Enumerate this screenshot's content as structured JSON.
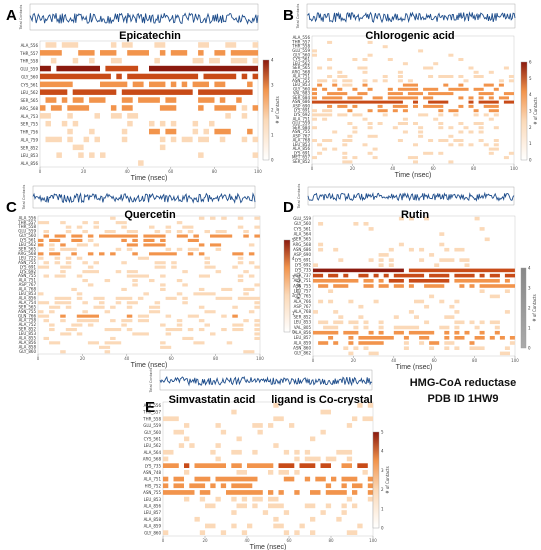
{
  "figure": {
    "info_line1": "HMG-CoA reductase",
    "info_line2": "PDB ID  1HW9"
  },
  "chart_data": [
    {
      "type": "heatmap",
      "letter": "A",
      "title": "Epicatechin",
      "xlabel": "Time (nsec)",
      "top_label": "Total Contacts",
      "cbar_label": "# of Contacts",
      "x_ticks": [
        "0",
        "20",
        "40",
        "60",
        "80",
        "100"
      ],
      "xlim": [
        0,
        100
      ],
      "residues": [
        "ALA_556",
        "THR_557",
        "THR_558",
        "GLU_559",
        "GLY_560",
        "CYS_561",
        "LEU_562",
        "SER_565",
        "ARG_568",
        "ALA_753",
        "SER_755",
        "THR_756",
        "ALA_759",
        "SER_852",
        "LEU_853",
        "ALA_856"
      ],
      "occupancy": [
        0.3,
        0.55,
        0.35,
        0.95,
        0.85,
        0.6,
        0.9,
        0.55,
        0.45,
        0.3,
        0.35,
        0.4,
        0.3,
        0.15,
        0.2,
        0.08
      ],
      "cbar_ticks": [
        "0",
        "1",
        "2",
        "3",
        "4"
      ],
      "total_contacts_mean": 4
    },
    {
      "type": "heatmap",
      "letter": "B",
      "title": "Chlorogenic acid",
      "xlabel": "Time (nsec)",
      "top_label": "Total Contacts",
      "cbar_label": "# of Contacts",
      "x_ticks": [
        "0",
        "20",
        "40",
        "60",
        "80",
        "100"
      ],
      "xlim": [
        0,
        100
      ],
      "residues": [
        "ALA_556",
        "THR_557",
        "THR_558",
        "GLU_559",
        "GLY_560",
        "CYS_561",
        "LEU_562",
        "SER_565",
        "ARG_568",
        "ALA_751",
        "ASN_755",
        "LEU_853",
        "GLY_560",
        "VAL_683",
        "SER_684",
        "ASN_686",
        "ASP_690",
        "LYS_691",
        "LYS_692",
        "ALA_751",
        "GLU_559",
        "SER_684",
        "ASN_755",
        "ASP_767",
        "ALA_768",
        "LEU_853",
        "ALA_856",
        "LYS_691",
        "MET_657",
        "SER_852"
      ],
      "occupancy": [
        0.05,
        0.05,
        0.05,
        0.06,
        0.08,
        0.08,
        0.1,
        0.15,
        0.2,
        0.3,
        0.35,
        0.45,
        0.5,
        0.55,
        0.6,
        0.85,
        0.55,
        0.45,
        0.35,
        0.3,
        0.2,
        0.25,
        0.2,
        0.15,
        0.2,
        0.25,
        0.15,
        0.2,
        0.1,
        0.08
      ],
      "cbar_ticks": [
        "0",
        "1",
        "2",
        "3",
        "4",
        "5",
        "6"
      ],
      "total_contacts_mean": 6
    },
    {
      "type": "heatmap",
      "letter": "C",
      "title": "Quercetin",
      "xlabel": "Time (nsec)",
      "top_label": "Total Contacts",
      "cbar_label": "# of Contacts",
      "x_ticks": [
        "0",
        "20",
        "40",
        "60",
        "80",
        "100"
      ],
      "xlim": [
        0,
        100
      ],
      "residues": [
        "ALA_556",
        "THR_557",
        "THR_558",
        "GLU_559",
        "GLY_560",
        "LYS_561",
        "LEU_562",
        "SER_565",
        "ARG_568",
        "LEU_722",
        "ASN_755",
        "LYS_691",
        "LYS_692",
        "ASN_755",
        "ALA_751",
        "ASP_767",
        "ALA_768",
        "LEU_853",
        "ALA_856",
        "ALA_754",
        "SER_565",
        "ASN_755",
        "GLN_766",
        "ALA_758",
        "ALA_752",
        "SER_852",
        "LEU_853",
        "ALA_855",
        "ALA_856",
        "ALA_858",
        "GLY_860"
      ],
      "occupancy": [
        0.15,
        0.2,
        0.25,
        0.35,
        0.55,
        0.45,
        0.4,
        0.3,
        0.45,
        0.2,
        0.25,
        0.3,
        0.2,
        0.3,
        0.25,
        0.15,
        0.2,
        0.15,
        0.35,
        0.3,
        0.35,
        0.3,
        0.4,
        0.3,
        0.25,
        0.3,
        0.25,
        0.2,
        0.2,
        0.15,
        0.1
      ],
      "cbar_ticks": [
        "0",
        "1",
        "2",
        "3",
        "4",
        "5"
      ],
      "total_contacts_mean": 5
    },
    {
      "type": "heatmap",
      "letter": "D",
      "title": "Rutin",
      "xlabel": "Time (nsec)",
      "top_label": "Total Contacts",
      "cbar_label": "# of Contacts",
      "x_ticks": [
        "0",
        "20",
        "40",
        "60",
        "80",
        "100"
      ],
      "xlim": [
        0,
        100
      ],
      "residues": [
        "GLU_559",
        "GLY_560",
        "CYS_561",
        "ALA_564",
        "SER_565",
        "ARG_568",
        "ASN_686",
        "ASP_690",
        "LYS_691",
        "LYS_692",
        "LYS_735",
        "ALA_737",
        "ALA_751",
        "ASN_755",
        "LEU_757",
        "GLY_765",
        "ALA_766",
        "ASP_767",
        "ALA_768",
        "SER_852",
        "LEU_853",
        "VAL_805",
        "ALA_856",
        "LEU_857",
        "ALA_859",
        "ASN_860",
        "GLY_862"
      ],
      "occupancy": [
        0.08,
        0.1,
        0.08,
        0.1,
        0.12,
        0.15,
        0.18,
        0.15,
        0.15,
        0.1,
        0.9,
        0.85,
        0.7,
        0.6,
        0.12,
        0.1,
        0.15,
        0.1,
        0.12,
        0.15,
        0.18,
        0.2,
        0.55,
        0.5,
        0.45,
        0.3,
        0.1
      ],
      "cbar_ticks": [
        "0",
        "1",
        "2",
        "3",
        "4"
      ],
      "total_contacts_mean": 4
    },
    {
      "type": "heatmap",
      "letter": "E",
      "title": "Simvastatin acid",
      "subtitle": "ligand is Co-crystal",
      "xlabel": "Time (nsec)",
      "top_label": "Total Contacts",
      "cbar_label": "# of Contacts",
      "x_ticks": [
        "0",
        "20",
        "40",
        "60",
        "80",
        "100"
      ],
      "xlim": [
        0,
        100
      ],
      "residues": [
        "ALA_556",
        "THR_557",
        "THR_558",
        "GLU_559",
        "GLY_560",
        "CYS_561",
        "LEU_562",
        "ALA_564",
        "ARG_568",
        "LYS_735",
        "ASN_748",
        "ALA_751",
        "HIS_752",
        "ASN_755",
        "LEU_853",
        "ALA_856",
        "LEU_857",
        "ALA_858",
        "ALA_859",
        "GLY_860"
      ],
      "occupancy": [
        0.1,
        0.1,
        0.1,
        0.15,
        0.25,
        0.15,
        0.2,
        0.3,
        0.2,
        0.7,
        0.3,
        0.55,
        0.5,
        0.6,
        0.35,
        0.3,
        0.2,
        0.15,
        0.15,
        0.1
      ],
      "cbar_ticks": [
        "0",
        "1",
        "2",
        "3",
        "4",
        "5"
      ],
      "total_contacts_mean": 5
    }
  ],
  "colors": {
    "line": "#1f4e8c",
    "heat_light": "#fbd9b8",
    "heat_mid": "#f2944c",
    "heat_dark": "#c84b18",
    "heat_max": "#8b1a0e"
  }
}
